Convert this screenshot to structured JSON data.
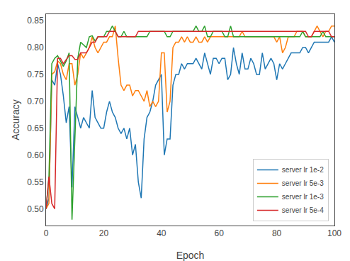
{
  "chart_data": {
    "type": "line",
    "x": [
      0,
      1,
      2,
      3,
      4,
      5,
      6,
      7,
      8,
      9,
      10,
      11,
      12,
      13,
      14,
      15,
      16,
      17,
      18,
      19,
      20,
      21,
      22,
      23,
      24,
      25,
      26,
      27,
      28,
      29,
      30,
      31,
      32,
      33,
      34,
      35,
      36,
      37,
      38,
      39,
      40,
      41,
      42,
      43,
      44,
      45,
      46,
      47,
      48,
      49,
      50,
      51,
      52,
      53,
      54,
      55,
      56,
      57,
      58,
      59,
      60,
      61,
      62,
      63,
      64,
      65,
      66,
      67,
      68,
      69,
      70,
      71,
      72,
      73,
      74,
      75,
      76,
      77,
      78,
      79,
      80,
      81,
      82,
      83,
      84,
      85,
      86,
      87,
      88,
      89,
      90,
      91,
      92,
      93,
      94,
      95,
      96,
      97,
      98,
      99,
      100
    ],
    "series": [
      {
        "name": "server lr 1e-2",
        "color": "#1f77b4",
        "values": [
          0.5,
          0.52,
          0.74,
          0.73,
          0.77,
          0.75,
          0.71,
          0.66,
          0.69,
          0.54,
          0.69,
          0.67,
          0.65,
          0.67,
          0.66,
          0.65,
          0.72,
          0.67,
          0.66,
          0.65,
          0.65,
          0.68,
          0.7,
          0.68,
          0.67,
          0.65,
          0.64,
          0.65,
          0.63,
          0.65,
          0.6,
          0.62,
          0.55,
          0.52,
          0.63,
          0.67,
          0.68,
          0.7,
          0.73,
          0.74,
          0.75,
          0.6,
          0.63,
          0.63,
          0.73,
          0.75,
          0.75,
          0.77,
          0.76,
          0.77,
          0.77,
          0.77,
          0.78,
          0.77,
          0.76,
          0.79,
          0.77,
          0.75,
          0.78,
          0.78,
          0.77,
          0.78,
          0.78,
          0.74,
          0.75,
          0.8,
          0.77,
          0.75,
          0.79,
          0.76,
          0.76,
          0.78,
          0.77,
          0.75,
          0.75,
          0.79,
          0.76,
          0.77,
          0.78,
          0.77,
          0.74,
          0.77,
          0.76,
          0.77,
          0.78,
          0.79,
          0.79,
          0.79,
          0.79,
          0.8,
          0.8,
          0.79,
          0.8,
          0.81,
          0.81,
          0.81,
          0.81,
          0.81,
          0.81,
          0.82,
          0.81
        ]
      },
      {
        "name": "server lr 5e-3",
        "color": "#ff7f0e",
        "values": [
          0.5,
          0.51,
          0.75,
          0.755,
          0.775,
          0.77,
          0.75,
          0.74,
          0.77,
          0.77,
          0.73,
          0.75,
          0.79,
          0.78,
          0.79,
          0.8,
          0.82,
          0.8,
          0.79,
          0.8,
          0.81,
          0.81,
          0.82,
          0.82,
          0.84,
          0.78,
          0.73,
          0.72,
          0.73,
          0.73,
          0.71,
          0.72,
          0.72,
          0.71,
          0.7,
          0.72,
          0.69,
          0.7,
          0.69,
          0.7,
          0.79,
          0.79,
          0.68,
          0.7,
          0.8,
          0.81,
          0.81,
          0.82,
          0.81,
          0.82,
          0.81,
          0.81,
          0.82,
          0.81,
          0.81,
          0.82,
          0.81,
          0.82,
          0.82,
          0.82,
          0.82,
          0.82,
          0.82,
          0.82,
          0.82,
          0.82,
          0.82,
          0.82,
          0.83,
          0.82,
          0.82,
          0.82,
          0.82,
          0.82,
          0.82,
          0.82,
          0.82,
          0.82,
          0.82,
          0.82,
          0.81,
          0.82,
          0.79,
          0.8,
          0.82,
          0.82,
          0.82,
          0.83,
          0.83,
          0.83,
          0.82,
          0.82,
          0.82,
          0.83,
          0.84,
          0.83,
          0.82,
          0.83,
          0.83,
          0.84,
          0.84
        ]
      },
      {
        "name": "server lr 1e-3",
        "color": "#2ca02c",
        "values": [
          0.5,
          0.56,
          0.77,
          0.78,
          0.785,
          0.775,
          0.765,
          0.775,
          0.79,
          0.48,
          0.64,
          0.78,
          0.81,
          0.805,
          0.8,
          0.82,
          0.822,
          0.812,
          0.82,
          0.82,
          0.82,
          0.83,
          0.83,
          0.84,
          0.83,
          0.82,
          0.82,
          0.83,
          0.82,
          0.82,
          0.82,
          0.82,
          0.82,
          0.82,
          0.82,
          0.82,
          0.83,
          0.83,
          0.83,
          0.83,
          0.83,
          0.83,
          0.82,
          0.82,
          0.83,
          0.83,
          0.83,
          0.83,
          0.83,
          0.83,
          0.83,
          0.83,
          0.84,
          0.83,
          0.83,
          0.84,
          0.82,
          0.82,
          0.83,
          0.83,
          0.83,
          0.83,
          0.82,
          0.82,
          0.84,
          0.82,
          0.82,
          0.82,
          0.82,
          0.82,
          0.82,
          0.82,
          0.82,
          0.82,
          0.82,
          0.82,
          0.82,
          0.82,
          0.82,
          0.82,
          0.82,
          0.82,
          0.82,
          0.82,
          0.82,
          0.82,
          0.82,
          0.82,
          0.82,
          0.83,
          0.82,
          0.82,
          0.82,
          0.82,
          0.82,
          0.82,
          0.83,
          0.82,
          0.82,
          0.82,
          0.82
        ]
      },
      {
        "name": "server lr 5e-4",
        "color": "#d62728",
        "values": [
          0.5,
          0.56,
          0.51,
          0.5,
          0.78,
          0.78,
          0.77,
          0.778,
          0.785,
          0.785,
          0.778,
          0.778,
          0.79,
          0.79,
          0.79,
          0.8,
          0.81,
          0.81,
          0.82,
          0.82,
          0.82,
          0.82,
          0.83,
          0.83,
          0.83,
          0.82,
          0.82,
          0.82,
          0.82,
          0.82,
          0.82,
          0.82,
          0.83,
          0.83,
          0.83,
          0.83,
          0.83,
          0.83,
          0.83,
          0.83,
          0.83,
          0.83,
          0.83,
          0.83,
          0.83,
          0.83,
          0.83,
          0.83,
          0.83,
          0.83,
          0.83,
          0.83,
          0.83,
          0.83,
          0.83,
          0.83,
          0.83,
          0.83,
          0.83,
          0.83,
          0.83,
          0.83,
          0.83,
          0.83,
          0.83,
          0.83,
          0.83,
          0.83,
          0.83,
          0.83,
          0.83,
          0.83,
          0.83,
          0.83,
          0.83,
          0.83,
          0.83,
          0.83,
          0.83,
          0.83,
          0.83,
          0.83,
          0.83,
          0.83,
          0.83,
          0.83,
          0.83,
          0.83,
          0.83,
          0.83,
          0.83,
          0.82,
          0.82,
          0.83,
          0.83,
          0.83,
          0.83,
          0.83,
          0.83,
          0.82,
          0.82
        ]
      }
    ],
    "xlabel": "Epoch",
    "ylabel": "Accuracy",
    "xlim": [
      0,
      100
    ],
    "ylim": [
      0.469,
      0.862
    ],
    "xticks": [
      0,
      20,
      40,
      60,
      80,
      100
    ],
    "yticks": [
      {
        "value": 0.5,
        "label": "0.50"
      },
      0.55,
      {
        "value": 0.6,
        "label": "0.60"
      },
      0.65,
      {
        "value": 0.7,
        "label": "0.70"
      },
      0.75,
      {
        "value": 0.8,
        "label": "0.80"
      },
      0.85
    ],
    "grid": false,
    "legend": "lower right"
  }
}
